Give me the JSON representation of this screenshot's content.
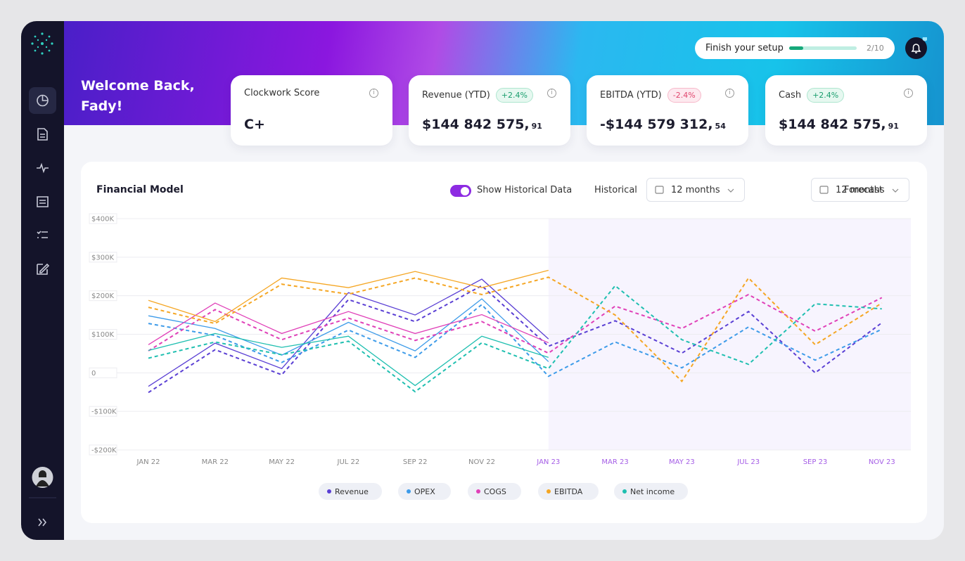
{
  "header": {
    "greeting": [
      "Welcome Back,",
      "Fady!"
    ],
    "setup_label": "Finish your setup",
    "setup_progress": "2/10"
  },
  "cards": [
    {
      "title": "Clockwork Score",
      "value": "C+"
    },
    {
      "title": "Revenue (YTD)",
      "change": "+2.4%",
      "value": "$144 842 575,",
      "cents": "91"
    },
    {
      "title": "EBITDA (YTD)",
      "change": "-2.4%",
      "value": "-$144 579 312,",
      "cents": "54"
    },
    {
      "title": "Cash",
      "change": "+2.4%",
      "value": "$144 842 575,",
      "cents": "91"
    }
  ],
  "panel": {
    "title": "Financial Model",
    "toggle_label": "Show Historical Data",
    "historical_label": "Historical",
    "historical_period": "12 months",
    "forecast_label": "Forecast",
    "forecast_period": "12 months"
  },
  "chart_data": {
    "type": "line",
    "categories": [
      "JAN 22",
      "MAR 22",
      "MAY 22",
      "JUL 22",
      "SEP 22",
      "NOV 22",
      "JAN 23",
      "MAR 23",
      "MAY 23",
      "JUL 23",
      "SEP 23",
      "NOV 23"
    ],
    "ylim": [
      -200000,
      400000
    ],
    "yticks": [
      {
        "value": 400000,
        "label": "$400K"
      },
      {
        "value": 300000,
        "label": "$300K"
      },
      {
        "value": 200000,
        "label": "$200K"
      },
      {
        "value": 100000,
        "label": "$100K"
      },
      0,
      {
        "value": -100000,
        "label": "-$100K"
      },
      {
        "value": -200000,
        "label": "-$200K"
      }
    ],
    "grid": true,
    "series": [
      {
        "name": "Revenue",
        "color": "#5a3fd4",
        "values": [
          -35000,
          77000,
          11000,
          208000,
          150000,
          243000,
          88000,
          null,
          null,
          null,
          null,
          null
        ],
        "forecast": [
          -51000,
          60000,
          -5000,
          190000,
          133000,
          226000,
          69000,
          135000,
          51000,
          159000,
          0,
          130000
        ]
      },
      {
        "name": "OPEX",
        "color": "#3d9be9",
        "values": [
          148000,
          115000,
          46000,
          131000,
          57000,
          192000,
          29000,
          null,
          null,
          null,
          null,
          null
        ],
        "forecast": [
          128000,
          97000,
          27000,
          111000,
          40000,
          177000,
          -9000,
          80000,
          13000,
          119000,
          33000,
          113000
        ]
      },
      {
        "name": "COGS",
        "color": "#e040b8",
        "values": [
          73000,
          181000,
          102000,
          159000,
          102000,
          151000,
          78000,
          null,
          null,
          null,
          null,
          null
        ],
        "forecast": [
          57000,
          164000,
          86000,
          142000,
          84000,
          133000,
          51000,
          173000,
          115000,
          203000,
          108000,
          195000
        ]
      },
      {
        "name": "EBITDA",
        "color": "#f5a623",
        "values": [
          188000,
          133000,
          246000,
          221000,
          263000,
          221000,
          266000,
          null,
          null,
          null,
          null,
          null
        ],
        "forecast": [
          170000,
          128000,
          230000,
          204000,
          246000,
          203000,
          248000,
          150000,
          -22000,
          246000,
          73000,
          181000
        ]
      },
      {
        "name": "Net income",
        "color": "#1fbfb0",
        "values": [
          58000,
          102000,
          66000,
          95000,
          -33000,
          95000,
          40000,
          null,
          null,
          null,
          null,
          null
        ],
        "forecast": [
          38000,
          80000,
          47000,
          82000,
          -49000,
          78000,
          11000,
          226000,
          86000,
          22000,
          179000,
          166000
        ]
      }
    ]
  }
}
